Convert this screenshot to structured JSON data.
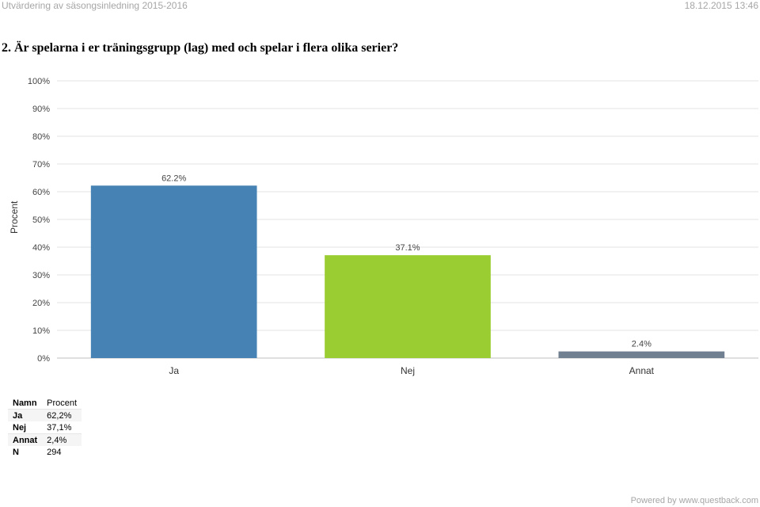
{
  "header": {
    "title": "Utvärdering av säsongsinledning 2015-2016",
    "datetime": "18.12.2015 13:46"
  },
  "question": "2. Är spelarna i er träningsgrupp (lag) med och spelar i flera olika serier?",
  "chart_data": {
    "type": "bar",
    "ylabel": "Procent",
    "ylim": [
      0,
      100
    ],
    "yticks": [
      "0%",
      "10%",
      "20%",
      "30%",
      "40%",
      "50%",
      "60%",
      "70%",
      "80%",
      "90%",
      "100%"
    ],
    "grid": true,
    "categories": [
      "Ja",
      "Nej",
      "Annat"
    ],
    "values": [
      62.2,
      37.1,
      2.4
    ],
    "data_labels": [
      "62.2%",
      "37.1%",
      "2.4%"
    ],
    "colors": [
      "#4682b4",
      "#9acd32",
      "#708090"
    ]
  },
  "table": {
    "headers": [
      "Namn",
      "Procent"
    ],
    "rows": [
      [
        "Ja",
        "62,2%"
      ],
      [
        "Nej",
        "37,1%"
      ],
      [
        "Annat",
        "2,4%"
      ],
      [
        "N",
        "294"
      ]
    ]
  },
  "footer": "Powered by www.questback.com"
}
